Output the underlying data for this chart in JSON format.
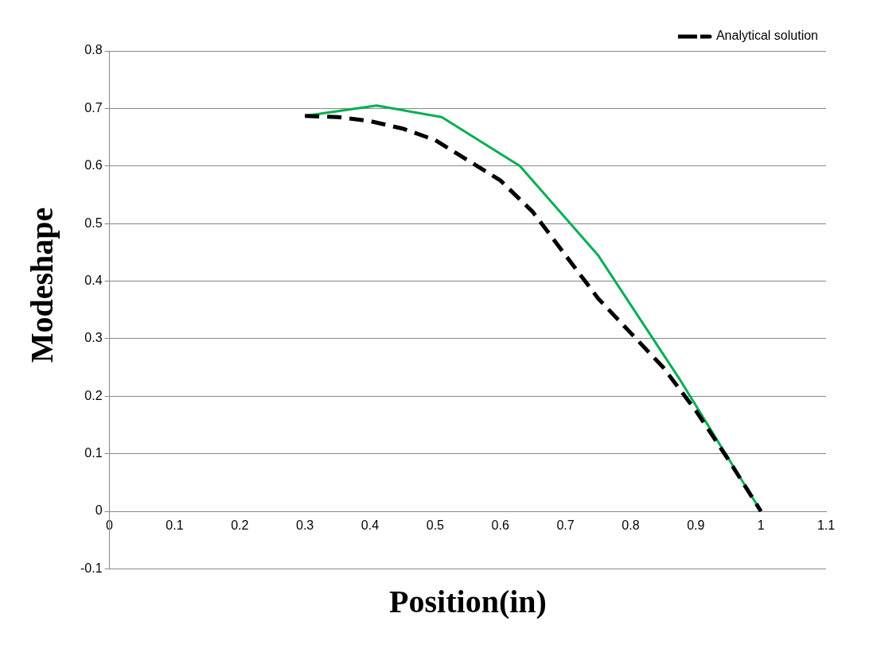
{
  "chart_data": {
    "type": "line",
    "xlabel": "Position(in)",
    "ylabel": "Modeshape",
    "xlim": [
      0,
      1.1
    ],
    "xticks": [
      0,
      0.1,
      0.2,
      0.3,
      0.4,
      0.5,
      0.6,
      0.7,
      0.8,
      0.9,
      1,
      1.1
    ],
    "ylim": [
      -0.1,
      0.8
    ],
    "yticks": [
      -0.1,
      0,
      0.1,
      0.2,
      0.3,
      0.4,
      0.5,
      0.6,
      0.7,
      0.8
    ],
    "grid": "y",
    "legend": "top right",
    "marker": "none",
    "series": [
      {
        "name": "Analytical solution",
        "color": "#000000",
        "line_style": "dashed",
        "x": [
          0.3,
          0.35,
          0.4,
          0.45,
          0.5,
          0.55,
          0.6,
          0.65,
          0.7,
          0.75,
          0.8,
          0.85,
          0.9,
          0.95,
          1.0
        ],
        "values": [
          0.687,
          0.685,
          0.678,
          0.665,
          0.645,
          0.61,
          0.575,
          0.52,
          0.445,
          0.37,
          0.31,
          0.25,
          0.175,
          0.09,
          0
        ]
      },
      {
        "color": "#00b050",
        "line_style": "solid",
        "x": [
          0.3,
          0.41,
          0.51,
          0.63,
          0.75,
          0.875,
          1.0
        ],
        "values": [
          0.687,
          0.705,
          0.685,
          0.6,
          0.445,
          0.23,
          0
        ]
      }
    ]
  }
}
